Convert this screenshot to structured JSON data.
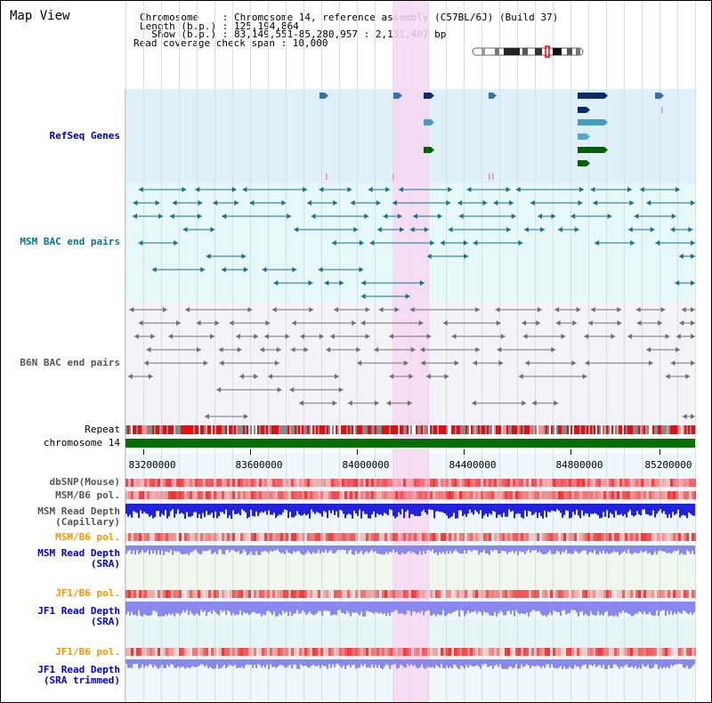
{
  "header": {
    "title": "Map View",
    "chromosome_line": "Chromosome    : Chromosome 14, reference assembly (C57BL/6J) (Build 37)",
    "length_line": "Length (b.p.) : 125,194,864",
    "show_line": "  Show (b.p.) : 83,149,551-85,280,957 : 2,131,407 bp",
    "coverage_line": "Read coverage check span : 10,000"
  },
  "tracks": [
    {
      "label": "RefSeq Genes",
      "color": "#0000aa"
    },
    {
      "label": "MSM BAC end pairs",
      "color": "#007788"
    },
    {
      "label": "B6N BAC end pairs",
      "color": "#555555"
    },
    {
      "label": "Repeat",
      "color": "#000000"
    },
    {
      "label": "chromosome 14",
      "color": "#000000"
    },
    {
      "label": "dbSNP(Mouse)",
      "color": "#555555"
    },
    {
      "label": "MSM/B6 pol.",
      "color": "#555555"
    },
    {
      "label": "MSM Read Depth\n(Capillary)",
      "color": "#555555"
    },
    {
      "label": "MSM/B6 pol.",
      "color": "#ee9900"
    },
    {
      "label": "MSM Read Depth\n(SRA)",
      "color": "#0000cc"
    },
    {
      "label": "JF1/B6 pol.",
      "color": "#ee9900"
    },
    {
      "label": "JF1 Read Depth\n(SRA)",
      "color": "#0000cc"
    },
    {
      "label": "JF1/B6 pol.",
      "color": "#ee9900"
    },
    {
      "label": "JF1 Read Depth\n(SRA trimmed)",
      "color": "#0000cc"
    }
  ],
  "axis": {
    "ticks": [
      "83200000",
      "83600000",
      "84000000",
      "84400000",
      "84800000",
      "85200000"
    ]
  },
  "colors": {
    "refseq_bg": "#dff0f8",
    "msm_bac_bg": "#e6f8f8",
    "b6n_bac_bg": "#f4f4f8",
    "highlight": "#f7d8f2",
    "chromosome": "#007000",
    "msm_depth": "#2222dd",
    "sra_depth": "#8888ee",
    "snp": "#ee3333"
  }
}
